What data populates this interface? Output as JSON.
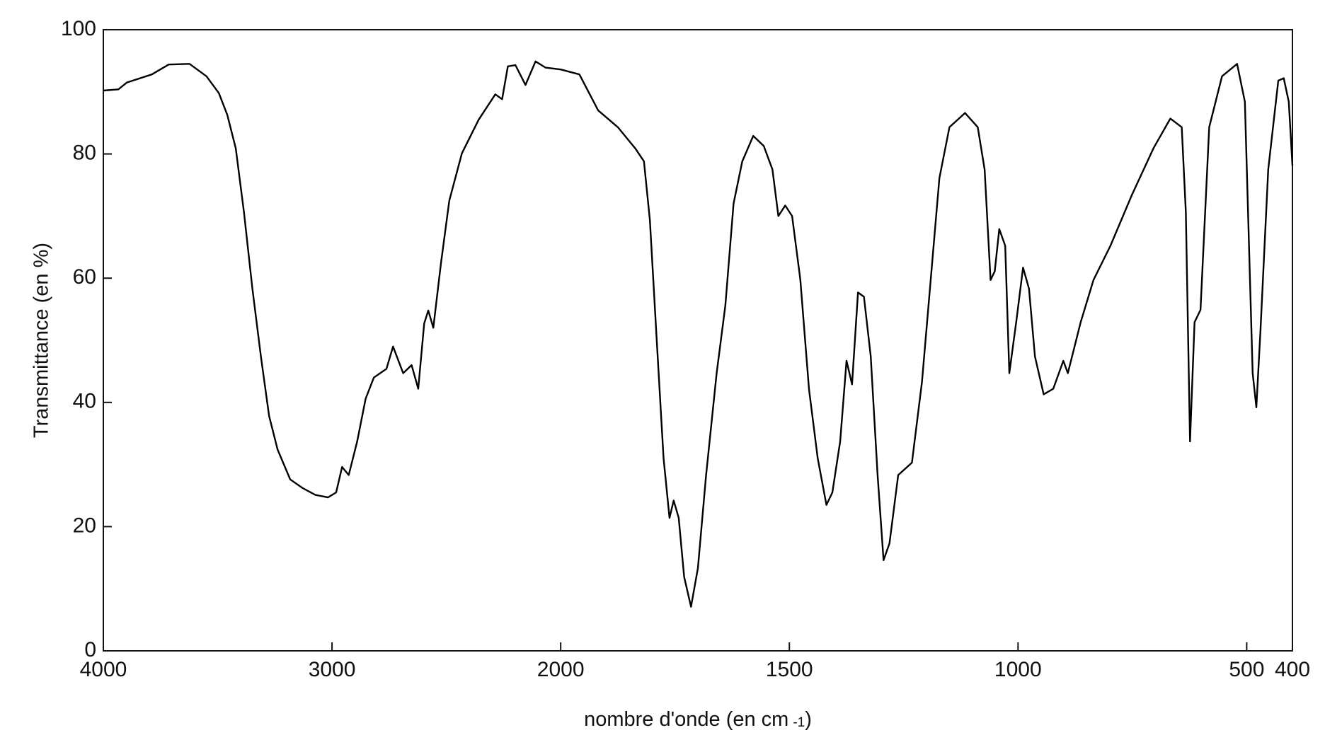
{
  "chart_data": {
    "type": "line",
    "xlabel": "nombre d'onde (en cm",
    "xlabel_sup": "-1",
    "xlabel_end": ")",
    "ylabel": "Transmittance (en %)",
    "xlim": [
      4000,
      400
    ],
    "xsplit": 2000,
    "ylim": [
      0,
      100
    ],
    "xticks": [
      4000,
      3000,
      2000,
      1500,
      1000,
      500,
      400
    ],
    "yticks": [
      0,
      20,
      40,
      60,
      80,
      100
    ],
    "color": "#000000",
    "x": [
      4000,
      3934,
      3897,
      3788,
      3714,
      3623,
      3549,
      3495,
      3458,
      3421,
      3385,
      3348,
      3311,
      3275,
      3238,
      3183,
      3128,
      3073,
      3018,
      2982,
      2956,
      2927,
      2890,
      2853,
      2817,
      2762,
      2733,
      2689,
      2652,
      2623,
      2597,
      2579,
      2557,
      2524,
      2487,
      2432,
      2359,
      2286,
      2256,
      2231,
      2198,
      2154,
      2110,
      2066,
      2000,
      1959,
      1918,
      1875,
      1837,
      1818,
      1805,
      1790,
      1775,
      1762,
      1753,
      1742,
      1730,
      1715,
      1700,
      1682,
      1659,
      1640,
      1622,
      1603,
      1579,
      1556,
      1537,
      1524,
      1509,
      1494,
      1476,
      1457,
      1438,
      1419,
      1406,
      1389,
      1375,
      1363,
      1350,
      1337,
      1322,
      1307,
      1294,
      1281,
      1262,
      1232,
      1210,
      1191,
      1172,
      1150,
      1116,
      1088,
      1073,
      1060,
      1051,
      1041,
      1028,
      1019,
      1004,
      989,
      976,
      963,
      944,
      923,
      901,
      891,
      863,
      835,
      798,
      751,
      704,
      667,
      642,
      633,
      624,
      614,
      601,
      582,
      554,
      521,
      504,
      487,
      479,
      470,
      453,
      431,
      419,
      408,
      400
    ],
    "values": [
      90.2,
      90.4,
      91.5,
      92.8,
      94.4,
      94.5,
      92.5,
      89.8,
      86.3,
      80.9,
      70.6,
      58.3,
      47.4,
      37.8,
      32.4,
      27.6,
      26.2,
      25.1,
      24.7,
      25.5,
      29.6,
      28.3,
      33.7,
      40.6,
      44.0,
      45.4,
      49.0,
      44.7,
      46.0,
      42.2,
      52.7,
      54.8,
      52.0,
      62.3,
      72.5,
      80.1,
      85.5,
      89.6,
      88.8,
      94.1,
      94.3,
      91.1,
      94.9,
      93.9,
      93.6,
      92.8,
      87.0,
      84.3,
      80.9,
      78.8,
      69.3,
      50.1,
      31.0,
      21.4,
      24.2,
      21.4,
      11.9,
      7.1,
      13.3,
      28.3,
      44.7,
      55.6,
      72.0,
      78.8,
      82.9,
      81.3,
      77.5,
      70.0,
      71.7,
      70.0,
      59.8,
      42.1,
      31.0,
      23.5,
      25.5,
      33.7,
      46.7,
      42.9,
      57.7,
      57.0,
      47.4,
      28.3,
      14.6,
      17.3,
      28.3,
      30.3,
      43.3,
      59.7,
      76.1,
      84.3,
      86.6,
      84.3,
      77.5,
      59.7,
      61.1,
      67.9,
      65.2,
      44.7,
      52.9,
      61.7,
      58.3,
      47.4,
      41.3,
      42.2,
      46.7,
      44.7,
      52.9,
      59.7,
      65.2,
      73.4,
      80.9,
      85.7,
      84.3,
      70.6,
      33.7,
      52.9,
      54.9,
      84.3,
      92.5,
      94.5,
      88.4,
      44.7,
      39.2,
      51.5,
      77.5,
      91.8,
      92.2,
      88.4,
      78.1
    ]
  }
}
